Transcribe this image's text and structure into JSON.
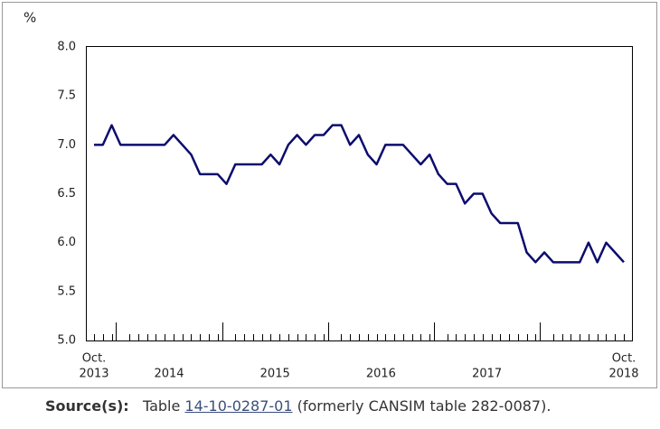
{
  "chart_data": {
    "type": "line",
    "y_label": "%",
    "categories": [
      "Oct.",
      null,
      null,
      null,
      null,
      null,
      null,
      null,
      null,
      null,
      null,
      null,
      null,
      null,
      null,
      null,
      null,
      null,
      null,
      null,
      null,
      null,
      null,
      null,
      null,
      null,
      null,
      null,
      null,
      null,
      null,
      null,
      null,
      null,
      null,
      null,
      null,
      null,
      null,
      null,
      null,
      null,
      null,
      null,
      null,
      null,
      null,
      null,
      null,
      null,
      null,
      null,
      null,
      null,
      null,
      null,
      null,
      null,
      null,
      null,
      "Oct."
    ],
    "year_labels": [
      "2013",
      "2014",
      "2015",
      "2016",
      "2017",
      "2018"
    ],
    "series": [
      {
        "color": "#0c0c6e",
        "values": [
          7.0,
          7.0,
          7.2,
          7.0,
          7.0,
          7.0,
          7.0,
          7.0,
          7.0,
          7.1,
          7.0,
          6.9,
          6.7,
          6.7,
          6.7,
          6.6,
          6.8,
          6.8,
          6.8,
          6.8,
          6.9,
          6.8,
          7.0,
          7.1,
          7.0,
          7.1,
          7.1,
          7.2,
          7.2,
          7.0,
          7.1,
          6.9,
          6.8,
          7.0,
          7.0,
          7.0,
          6.9,
          6.8,
          6.9,
          6.7,
          6.6,
          6.6,
          6.4,
          6.5,
          6.5,
          6.3,
          6.2,
          6.2,
          6.2,
          5.9,
          5.8,
          5.9,
          5.8,
          5.8,
          5.8,
          5.8,
          6.0,
          5.8,
          6.0,
          5.9,
          5.8
        ]
      }
    ],
    "ylim": [
      5,
      8
    ],
    "yticks": [
      {
        "value": 5,
        "label": "5.0"
      },
      {
        "value": 5.5,
        "label": "5.5"
      },
      {
        "value": 6,
        "label": "6.0"
      },
      {
        "value": 6.5,
        "label": "6.5"
      },
      {
        "value": 7,
        "label": "7.0"
      },
      {
        "value": 7.5,
        "label": "7.5"
      },
      {
        "value": 8,
        "label": "8.0"
      }
    ],
    "grid": false,
    "source": {
      "label": "Source(s):",
      "before": "Table",
      "link": "14-10-0287-01",
      "after": "(formerly CANSIM table 282-0087)."
    }
  }
}
